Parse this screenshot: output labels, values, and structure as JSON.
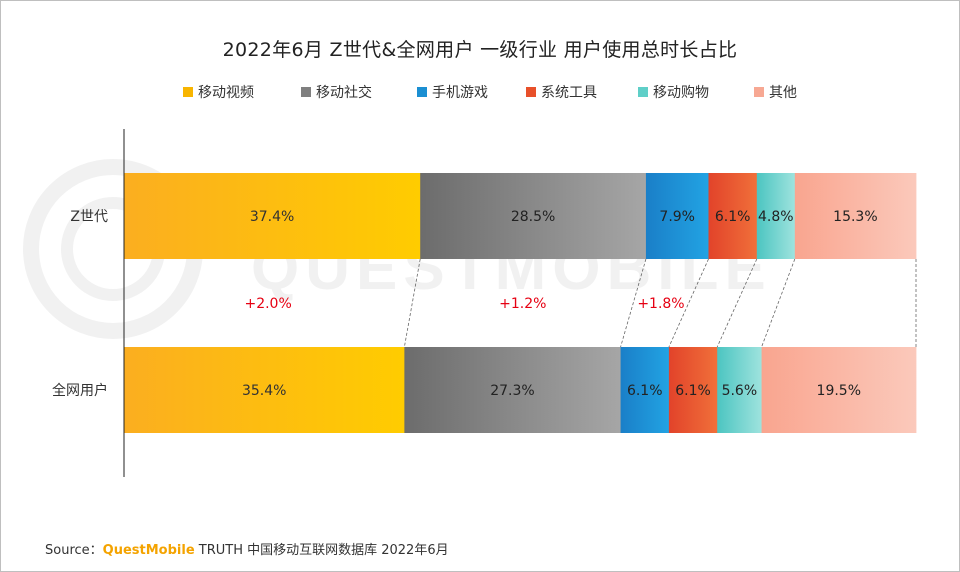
{
  "title": "2022年6月 Z世代&全网用户 一级行业 用户使用总时长占比",
  "legend": [
    {
      "label": "移动视频",
      "color": "#f8b500"
    },
    {
      "label": "移动社交",
      "color": "#7f7f7f"
    },
    {
      "label": "手机游戏",
      "color": "#1b8fd2"
    },
    {
      "label": "系统工具",
      "color": "#e8502a"
    },
    {
      "label": "移动购物",
      "color": "#5fcfc8"
    },
    {
      "label": "其他",
      "color": "#f7a893"
    }
  ],
  "watermark": "QUESTMOBILE",
  "source": {
    "prefix": "Source：",
    "brand": "QuestMobile",
    "text": " TRUTH 中国移动互联网数据库 2022年6月"
  },
  "chart_data": {
    "type": "bar",
    "orientation": "horizontal-stacked-100",
    "title": "2022年6月 Z世代&全网用户 一级行业 用户使用总时长占比",
    "categories": [
      "Z世代",
      "全网用户"
    ],
    "series": [
      {
        "name": "移动视频",
        "values": [
          37.4,
          35.4
        ],
        "labels": [
          "37.4%",
          "35.4%"
        ],
        "gradient": [
          "#fbae20",
          "#ffcc00"
        ],
        "text_color": "#333333"
      },
      {
        "name": "移动社交",
        "values": [
          28.5,
          27.3
        ],
        "labels": [
          "28.5%",
          "27.3%"
        ],
        "gradient": [
          "#6c6c6c",
          "#a6a6a6"
        ],
        "text_color": "#222222"
      },
      {
        "name": "手机游戏",
        "values": [
          7.9,
          6.1
        ],
        "labels": [
          "7.9%",
          "6.1%"
        ],
        "gradient": [
          "#1a7fc8",
          "#22a3e3"
        ],
        "text_color": "#222222"
      },
      {
        "name": "系统工具",
        "values": [
          6.1,
          6.1
        ],
        "labels": [
          "6.1%",
          "6.1%"
        ],
        "gradient": [
          "#e2432a",
          "#f0703a"
        ],
        "text_color": "#222222"
      },
      {
        "name": "移动购物",
        "values": [
          4.8,
          5.6
        ],
        "labels": [
          "4.8%",
          "5.6%"
        ],
        "gradient": [
          "#4cc5c1",
          "#9fe3de"
        ],
        "text_color": "#222222"
      },
      {
        "name": "其他",
        "values": [
          15.3,
          19.5
        ],
        "labels": [
          "15.3%",
          "19.5%"
        ],
        "gradient": [
          "#f9a58f",
          "#fbc9bb"
        ],
        "text_color": "#222222"
      }
    ],
    "differences": [
      {
        "series": "移动视频",
        "label": "+2.0%"
      },
      {
        "series": "移动社交",
        "label": "+1.2%"
      },
      {
        "series": "手机游戏",
        "label": "+1.8%"
      }
    ],
    "difference_color": "#e60012",
    "xlim": [
      0,
      100
    ],
    "legend_position": "top-center",
    "grid": false
  }
}
